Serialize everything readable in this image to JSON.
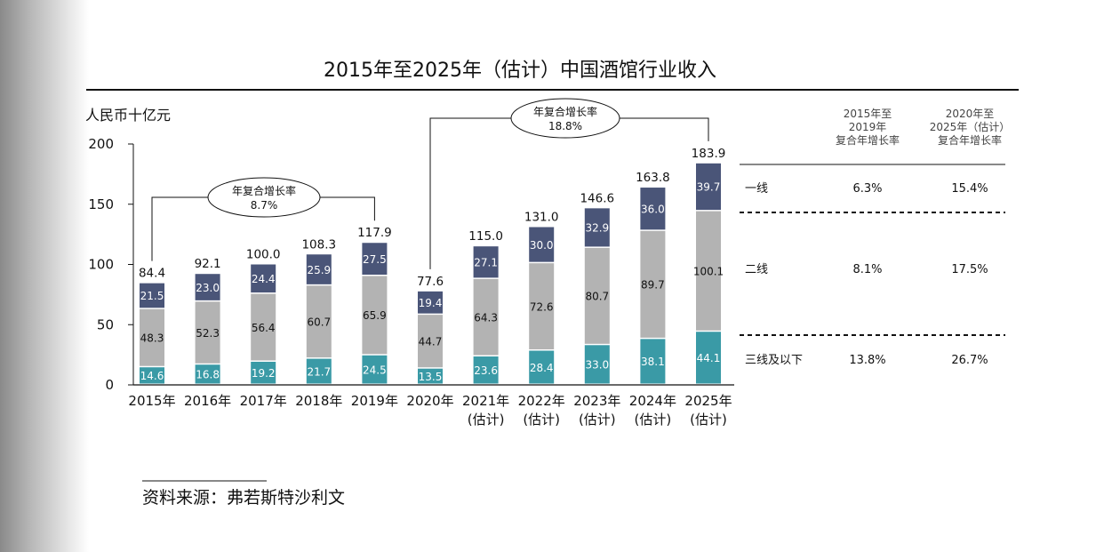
{
  "chart_data": {
    "type": "bar",
    "stacked": true,
    "title": "2015年至2025年（估计）中国酒馆行业收入",
    "ylabel": "人民币十亿元",
    "ylim": [
      0,
      200
    ],
    "yticks": [
      "0",
      "50",
      "100",
      "150",
      "200"
    ],
    "categories": [
      [
        "2015年"
      ],
      [
        "2016年"
      ],
      [
        "2017年"
      ],
      [
        "2018年"
      ],
      [
        "2019年"
      ],
      [
        "2020年"
      ],
      [
        "2021年",
        "(估计)"
      ],
      [
        "2022年",
        "(估计)"
      ],
      [
        "2023年",
        "(估计)"
      ],
      [
        "2024年",
        "(估计)"
      ],
      [
        "2025年",
        "(估计)"
      ]
    ],
    "series": [
      {
        "key": "tier3",
        "values": [
          14.6,
          16.8,
          19.2,
          21.7,
          24.5,
          13.5,
          23.6,
          28.4,
          33.0,
          38.1,
          44.1
        ]
      },
      {
        "key": "tier2",
        "values": [
          48.3,
          52.3,
          56.4,
          60.7,
          65.9,
          44.7,
          64.3,
          72.6,
          80.7,
          89.7,
          100.1
        ]
      },
      {
        "key": "tier1",
        "values": [
          21.5,
          23.0,
          24.4,
          25.9,
          27.5,
          19.4,
          27.1,
          30.0,
          32.9,
          36.0,
          39.7
        ]
      }
    ],
    "totals": [
      "84.4",
      "92.1",
      "100.0",
      "108.3",
      "117.9",
      "77.6",
      "115.0",
      "131.0",
      "146.6",
      "163.8",
      "183.9"
    ],
    "colors": {
      "tier1": "#4a5578",
      "tier2": "#b3b3b3",
      "tier3": "#3a9aa6"
    },
    "annotations": [
      {
        "text": [
          "年复合增长率",
          "8.7%"
        ],
        "from_index": 0,
        "to_index": 4
      },
      {
        "text": [
          "年复合增长率",
          "18.8%"
        ],
        "from_index": 5,
        "to_index": 10
      }
    ]
  },
  "cagr_table": {
    "headers": [
      [
        "2015年至",
        "2019年",
        "复合年增长率"
      ],
      [
        "2020年至",
        "2025年（估计）",
        "复合年增长率"
      ]
    ],
    "rows": [
      {
        "label": "一线",
        "v1": "6.3%",
        "v2": "15.4%"
      },
      {
        "label": "二线",
        "v1": "8.1%",
        "v2": "17.5%"
      },
      {
        "label": "三线及以下",
        "v1": "13.8%",
        "v2": "26.7%"
      }
    ]
  },
  "source": "资料来源：弗若斯特沙利文"
}
